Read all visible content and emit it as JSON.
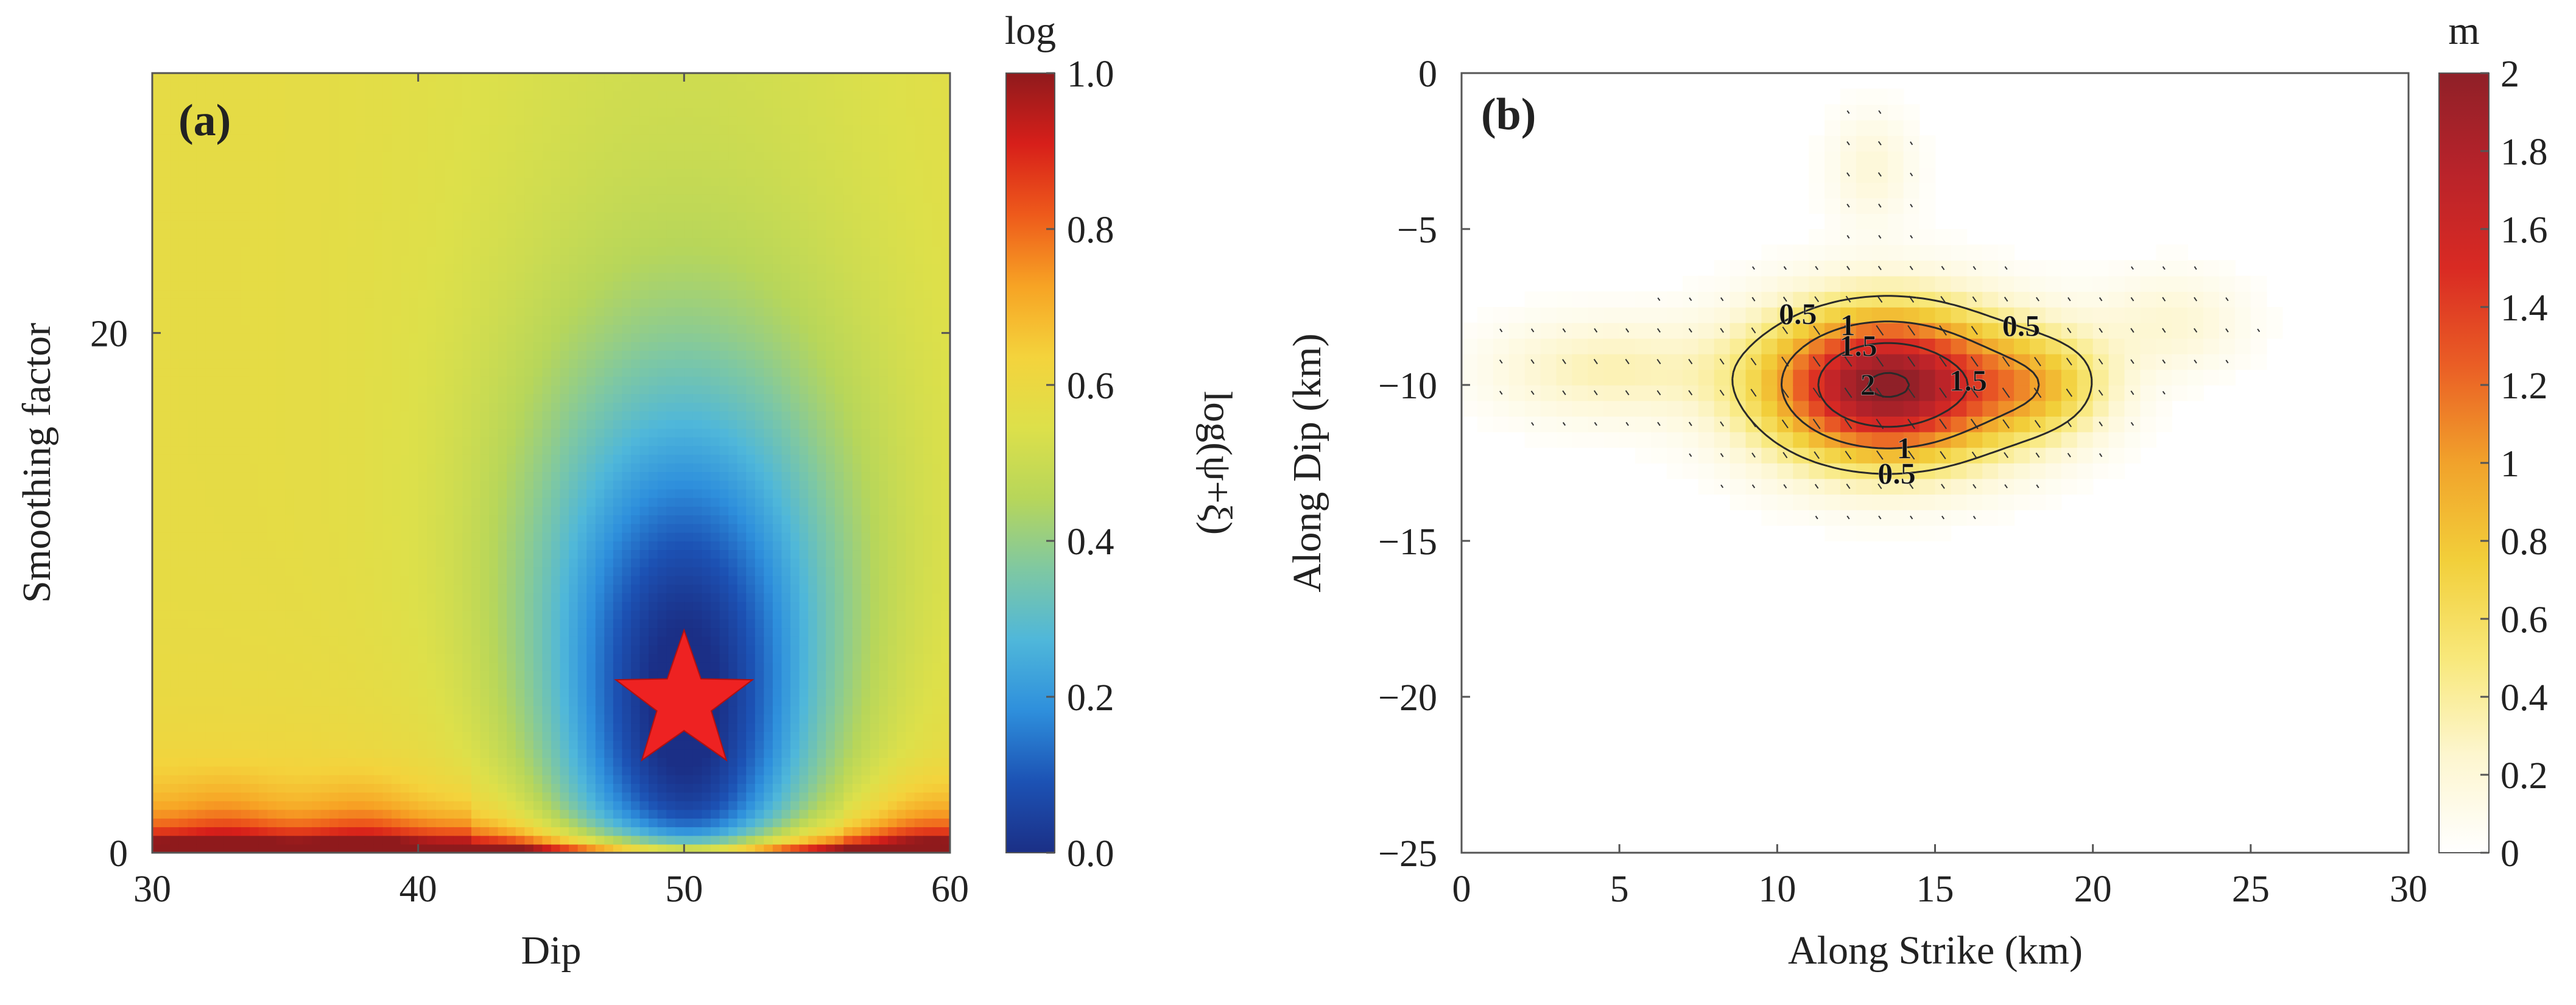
{
  "colors": {
    "jet_stops": [
      "#1b2f86",
      "#1c52b4",
      "#2e8fdc",
      "#4fb7da",
      "#7fc8a2",
      "#b7d65a",
      "#dde04a",
      "#f4d33c",
      "#f7a324",
      "#ee5a1b",
      "#d71f1a",
      "#8f1a1c"
    ],
    "slip_stops": [
      "#ffffff",
      "#fdf6cf",
      "#f8e87a",
      "#f2cf3a",
      "#f1a22b",
      "#ea5e25",
      "#d92a23",
      "#b8232a",
      "#8f2028"
    ],
    "star": "#ee2222",
    "axis": "#555555"
  },
  "chart_data": [
    {
      "id": "a",
      "type": "heatmap",
      "panel_label": "(a)",
      "xlabel": "Dip",
      "ylabel": "Smoothing factor",
      "xlim": [
        30,
        60
      ],
      "ylim": [
        0,
        30
      ],
      "xticks": [
        30,
        40,
        50,
        60
      ],
      "yticks": [
        0,
        20
      ],
      "minimum_marker": {
        "x": 50,
        "y": 5.8,
        "symbol": "star"
      },
      "colorbar": {
        "title": "log",
        "label": "log(ψ+ξ)",
        "range": [
          0.0,
          1.0
        ],
        "ticks": [
          "0.0",
          "0.2",
          "0.4",
          "0.6",
          "0.8",
          "1.0"
        ]
      }
    },
    {
      "id": "b",
      "type": "heatmap",
      "panel_label": "(b)",
      "xlabel": "Along Strike (km)",
      "ylabel": "Along Dip (km)",
      "xlim": [
        0,
        30
      ],
      "ylim": [
        -25,
        0
      ],
      "xticks": [
        0,
        5,
        10,
        15,
        20,
        25,
        30
      ],
      "yticks": [
        0,
        -5,
        -10,
        -15,
        -20,
        -25
      ],
      "peak_slip": {
        "x": 13.5,
        "y": -10,
        "value": 2.05
      },
      "contours": [
        {
          "level": 0.5,
          "label": "0.5"
        },
        {
          "level": 1.0,
          "label": "1"
        },
        {
          "level": 1.5,
          "label": "1.5"
        },
        {
          "level": 2.0,
          "label": "2"
        }
      ],
      "colorbar": {
        "title": "m",
        "range": [
          0,
          2
        ],
        "ticks": [
          "0",
          "0.2",
          "0.4",
          "0.6",
          "0.8",
          "1",
          "1.2",
          "1.4",
          "1.6",
          "1.8",
          "2"
        ]
      }
    }
  ]
}
